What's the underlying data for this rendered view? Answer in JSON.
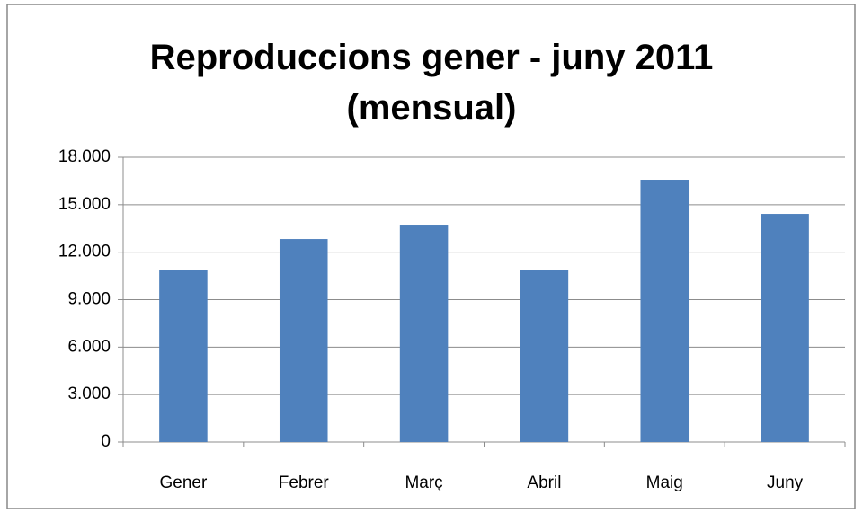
{
  "chart_data": {
    "type": "bar",
    "title": "Reproduccions gener - juny 2011 (mensual)",
    "categories": [
      "Gener",
      "Febrer",
      "Març",
      "Abril",
      "Maig",
      "Juny"
    ],
    "values": [
      10900,
      12830,
      13740,
      10900,
      16580,
      14420
    ],
    "color": "#4f81bd",
    "ylim": [
      0,
      18000
    ],
    "yticks": [
      0,
      {
        "value": 3000,
        "label": "3.000"
      },
      {
        "value": 6000,
        "label": "6.000"
      },
      {
        "value": 9000,
        "label": "9.000"
      },
      {
        "value": 12000,
        "label": "12.000"
      },
      {
        "value": 15000,
        "label": "15.000"
      },
      {
        "value": 18000,
        "label": "18.000"
      }
    ],
    "grid": true
  }
}
